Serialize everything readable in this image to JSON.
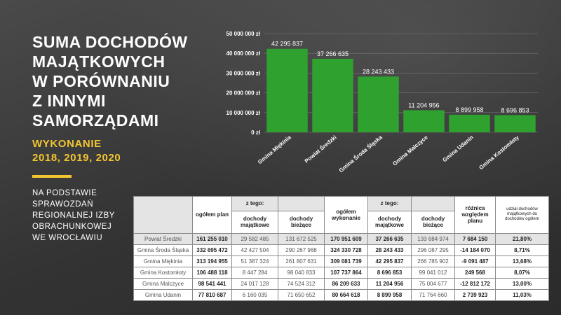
{
  "left_panel": {
    "title_lines": [
      "SUMA DOCHODÓW",
      "MAJĄTKOWYCH",
      "W PORÓWNANIU",
      "Z INNYMI",
      "SAMORZĄDAMI"
    ],
    "subtitle_lines": [
      "WYKONANIE",
      "2018, 2019, 2020"
    ],
    "note_lines": [
      "NA PODSTAWIE",
      "SPRAWOZDAŃ",
      "REGIONALNEJ IZBY",
      "OBRACHUNKOWEJ",
      "WE WROCŁAWIU"
    ]
  },
  "colors": {
    "accent": "#f2c531",
    "bar": "#2ea12e",
    "background": "#3a3a3a"
  },
  "chart_data": {
    "type": "bar",
    "categories": [
      "Gmina Miękinia",
      "Powiat Średzki",
      "Gmina Środa Śląska",
      "Gmina Malczyce",
      "Gmina Udanin",
      "Gmina Kostomłoty"
    ],
    "values": [
      42295837,
      37266635,
      28243433,
      11204956,
      8899958,
      8696853
    ],
    "value_labels": [
      "42 295 837",
      "37 266 635",
      "28 243 433",
      "11 204 956",
      "8 899 958",
      "8 696 853"
    ],
    "y_ticks": [
      "0 zł",
      "10 000 000 zł",
      "20 000 000 zł",
      "30 000 000 zł",
      "40 000 000 zł",
      "50 000 000 zł"
    ],
    "ylim": [
      0,
      50000000
    ],
    "grid": true
  },
  "table": {
    "headers": {
      "ogolem_plan": "ogółem plan",
      "z_tego_1": "z tego:",
      "dochody_majatkowe_1": "dochody majątkowe",
      "dochody_biezace_1": "dochody bieżące",
      "ogolem_wykonanie": "ogółem wykonanie",
      "z_tego_2": "z tego:",
      "dochody_majatkowe_2": "dochody majątkowe",
      "dochody_biezace_2": "dochody bieżące",
      "roznica": "różnica względem planu",
      "udzial": "udział dochodów majątkowych do dochodów ogółem"
    },
    "rows": [
      [
        "Powiat Średzki",
        "161 255 010",
        "29 582 485",
        "131 672 525",
        "170 951 609",
        "37 266 635",
        "133 684 974",
        "7 684 150",
        "21,80%"
      ],
      [
        "Gmina Środa Śląska",
        "332 695 472",
        "42 427 504",
        "290 267 968",
        "324 330 728",
        "28 243 433",
        "296 087 295",
        "-14 184 070",
        "8,71%"
      ],
      [
        "Gmina Miękinia",
        "313 194 955",
        "51 387 324",
        "261 807 631",
        "309 081 739",
        "42 295 837",
        "266 785 902",
        "-9 091 487",
        "13,68%"
      ],
      [
        "Gmina Kostomłoty",
        "106 488 118",
        "8 447 284",
        "98 040 833",
        "107 737 864",
        "8 696 853",
        "99 041 012",
        "249 568",
        "8,07%"
      ],
      [
        "Gmina Malczyce",
        "98 541 441",
        "24 017 128",
        "74 524 312",
        "86 209 633",
        "11 204 956",
        "75 004 677",
        "-12 812 172",
        "13,00%"
      ],
      [
        "Gmina Udanin",
        "77 810 687",
        "6 160 035",
        "71 650 652",
        "80 664 618",
        "8 899 958",
        "71 764 660",
        "2 739 923",
        "11,03%"
      ]
    ]
  }
}
